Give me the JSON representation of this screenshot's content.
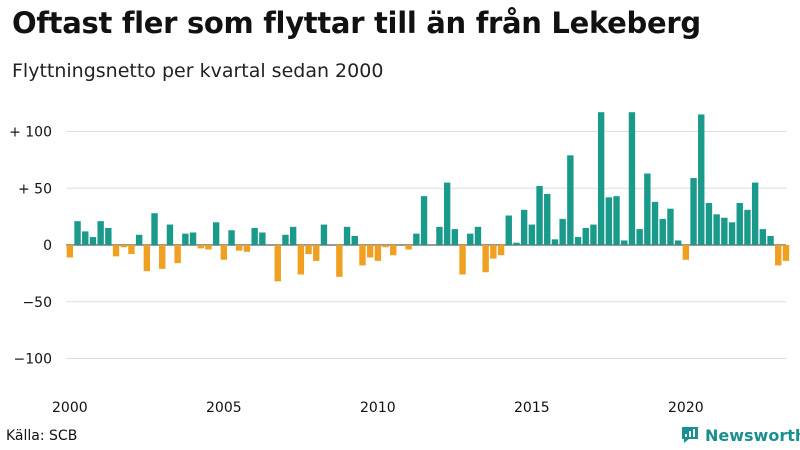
{
  "title": "Oftast fler som flyttar till än från Lekeberg",
  "subtitle": "Flyttningsnetto per kvartal sedan 2000",
  "source": "Källa: SCB",
  "brand": "Newsworthy",
  "colors": {
    "positive": "#1a9a8a",
    "negative": "#f0a020",
    "grid": "#dddddd",
    "brand": "#1a8f8f"
  },
  "chart_data": {
    "type": "bar",
    "title": "Oftast fler som flyttar till än från Lekeberg",
    "subtitle": "Flyttningsnetto per kvartal sedan 2000",
    "xlabel": "",
    "ylabel": "",
    "ylim": [
      -110,
      120
    ],
    "grid": true,
    "y_ticks": [
      {
        "value": 100,
        "label": "+ 100"
      },
      {
        "value": 50,
        "label": "+  50"
      },
      {
        "value": 0,
        "label": "0"
      },
      {
        "value": -50,
        "label": "−50"
      },
      {
        "value": -100,
        "label": "−100"
      }
    ],
    "x_ticks": [
      "2000",
      "2005",
      "2010",
      "2015",
      "2020"
    ],
    "start_year": 2000,
    "series": [
      {
        "values": [
          -11,
          21,
          12,
          7,
          21,
          15,
          -10,
          -2,
          -8,
          9,
          -23,
          28,
          -21,
          18,
          -16,
          10,
          11,
          -3,
          -4,
          20,
          -13,
          13,
          -5,
          -6,
          15,
          11,
          0,
          -32,
          9,
          16,
          -26,
          -8,
          -14,
          18,
          0,
          -28,
          16,
          8,
          -18,
          -11,
          -14,
          -2,
          -9,
          0,
          -4,
          10,
          43,
          0,
          16,
          55,
          14,
          -26,
          10,
          16,
          -24,
          -12,
          -9,
          26,
          2,
          31,
          18,
          52,
          45,
          5,
          23,
          79,
          7,
          15,
          18,
          117,
          42,
          43,
          4,
          117,
          14,
          63,
          38,
          23,
          32,
          4,
          -13,
          59,
          115,
          37,
          27,
          24,
          20,
          37,
          31,
          55,
          14,
          8,
          -18,
          -14
        ]
      }
    ]
  }
}
